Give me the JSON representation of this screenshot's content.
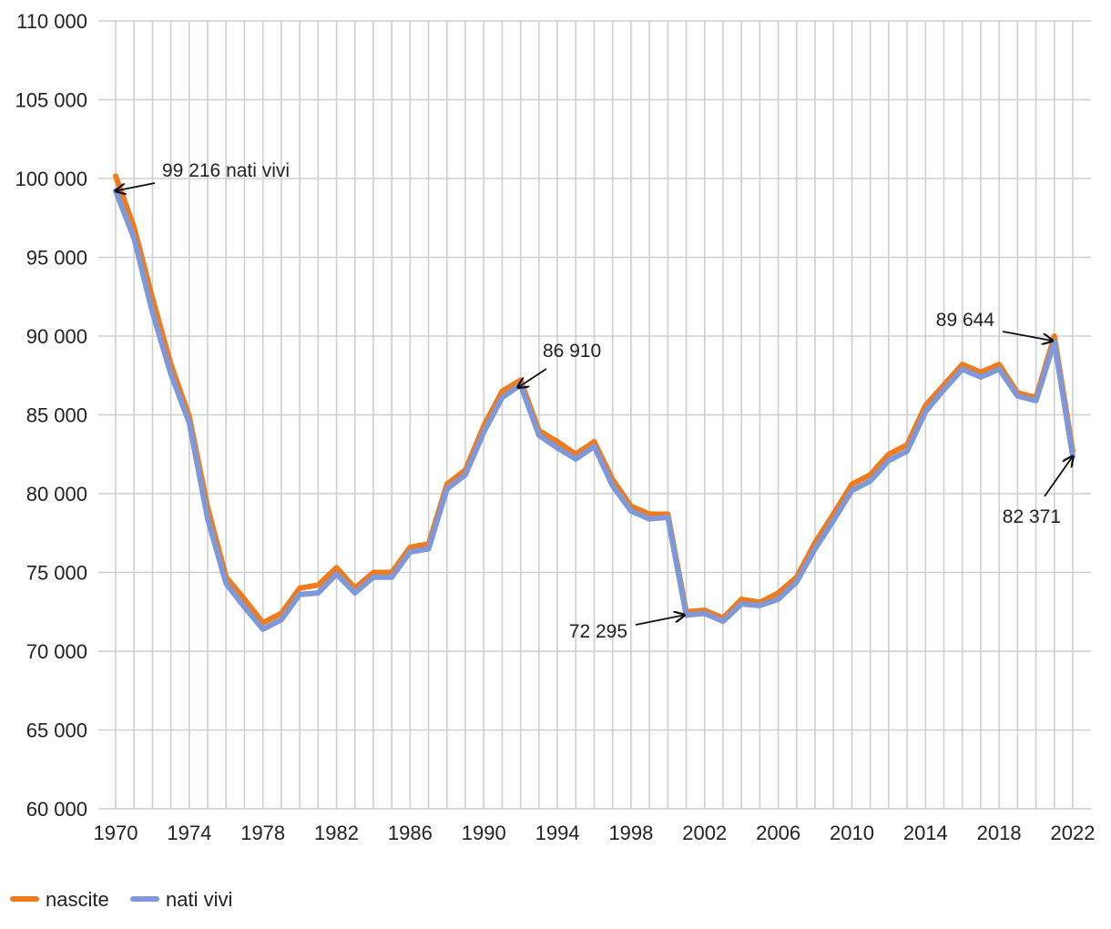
{
  "chart_data": {
    "type": "line",
    "title": "",
    "xlabel": "",
    "ylabel": "",
    "x": [
      1970,
      1971,
      1972,
      1973,
      1974,
      1975,
      1976,
      1977,
      1978,
      1979,
      1980,
      1981,
      1982,
      1983,
      1984,
      1985,
      1986,
      1987,
      1988,
      1989,
      1990,
      1991,
      1992,
      1993,
      1994,
      1995,
      1996,
      1997,
      1998,
      1999,
      2000,
      2001,
      2002,
      2003,
      2004,
      2005,
      2006,
      2007,
      2008,
      2009,
      2010,
      2011,
      2012,
      2013,
      2014,
      2015,
      2016,
      2017,
      2018,
      2019,
      2020,
      2021,
      2022
    ],
    "xticks": [
      1970,
      1974,
      1978,
      1982,
      1986,
      1990,
      1994,
      1998,
      2002,
      2006,
      2010,
      2014,
      2018,
      2022
    ],
    "xtick_labels": [
      "1970",
      "1974",
      "1978",
      "1982",
      "1986",
      "1990",
      "1994",
      "1998",
      "2002",
      "2006",
      "2010",
      "2014",
      "2018",
      "2022"
    ],
    "ylim": [
      60000,
      110000
    ],
    "yticks": [
      60000,
      65000,
      70000,
      75000,
      80000,
      85000,
      90000,
      95000,
      100000,
      105000,
      110000
    ],
    "ytick_labels": [
      "60 000",
      "65 000",
      "70 000",
      "75 000",
      "80 000",
      "85 000",
      "90 000",
      "95 000",
      "100 000",
      "105 000",
      "110 000"
    ],
    "grid": true,
    "legend_position": "bottom-left",
    "series": [
      {
        "name": "nascite",
        "color": "#f07b1d",
        "values": [
          100150,
          96900,
          92400,
          88200,
          84900,
          79100,
          74700,
          73300,
          71800,
          72400,
          74000,
          74200,
          75300,
          74000,
          75000,
          75000,
          76600,
          76800,
          80600,
          81500,
          84300,
          86500,
          87200,
          84000,
          83300,
          82500,
          83300,
          80900,
          79200,
          78700,
          78700,
          72500,
          72600,
          72100,
          73300,
          73100,
          73700,
          74700,
          76900,
          78700,
          80600,
          81200,
          82500,
          83100,
          85600,
          86900,
          88200,
          87700,
          88200,
          86400,
          86100,
          90000,
          82700
        ]
      },
      {
        "name": "nati vivi",
        "color": "#7f98d8",
        "values": [
          99216,
          96200,
          91500,
          87600,
          84500,
          78400,
          74300,
          72800,
          71400,
          72000,
          73600,
          73700,
          74900,
          73700,
          74700,
          74700,
          76300,
          76500,
          80300,
          81200,
          83900,
          86100,
          86910,
          83700,
          82900,
          82200,
          83000,
          80500,
          78900,
          78400,
          78500,
          72295,
          72400,
          71900,
          73000,
          72900,
          73300,
          74400,
          76500,
          78300,
          80200,
          80800,
          82100,
          82700,
          85200,
          86600,
          87900,
          87400,
          87900,
          86200,
          85900,
          89644,
          82371
        ]
      }
    ],
    "annotations": [
      {
        "text": "99 216 nati vivi",
        "x": 1970,
        "y": 99216
      },
      {
        "text": "86 910",
        "x": 1992,
        "y": 86910
      },
      {
        "text": "72 295",
        "x": 2001,
        "y": 72295
      },
      {
        "text": "89 644",
        "x": 2021,
        "y": 89644
      },
      {
        "text": "82 371",
        "x": 2022,
        "y": 82371
      }
    ]
  }
}
